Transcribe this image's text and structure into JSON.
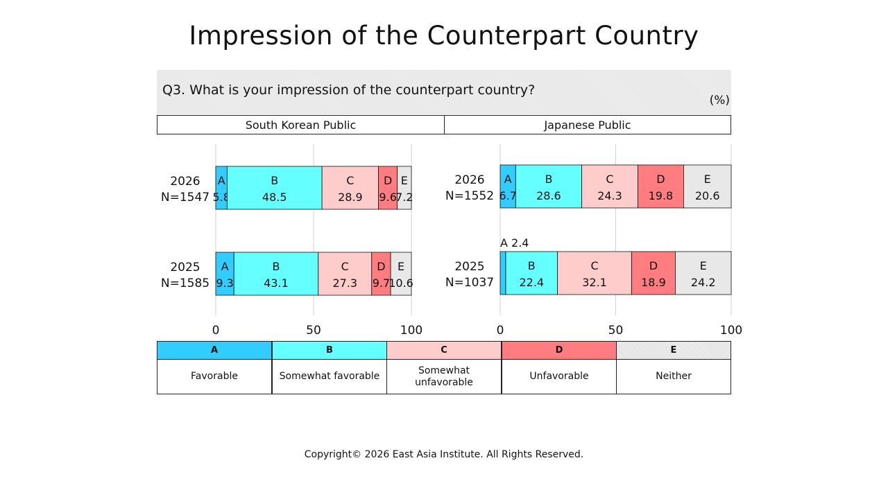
{
  "title": "Impression of the Counterpart Country",
  "question": "Q3. What is your impression of the counterpart country?",
  "unit": "(%)",
  "copyright": "Copyright© 2026 East Asia Institute. All Rights Reserved.",
  "colors": {
    "A": "#33ccff",
    "B": "#66ffff",
    "C": "#ffcccc",
    "D": "#ff7c80",
    "E": "#e8e8e8"
  },
  "legend": [
    {
      "key": "A",
      "label": "Favorable"
    },
    {
      "key": "B",
      "label": "Somewhat favorable"
    },
    {
      "key": "C",
      "label": "Somewhat unfavorable"
    },
    {
      "key": "D",
      "label": "Unfavorable"
    },
    {
      "key": "E",
      "label": "Neither"
    }
  ],
  "chart_data": [
    {
      "type": "bar",
      "orientation": "horizontal",
      "stacked": true,
      "title": "South Korean Public",
      "categories": [
        {
          "year": "2026",
          "n": "N=1547"
        },
        {
          "year": "2025",
          "n": "N=1585"
        }
      ],
      "series": [
        {
          "name": "A",
          "values": [
            5.8,
            9.3
          ]
        },
        {
          "name": "B",
          "values": [
            48.5,
            43.1
          ]
        },
        {
          "name": "C",
          "values": [
            28.9,
            27.3
          ]
        },
        {
          "name": "D",
          "values": [
            9.6,
            9.7
          ]
        },
        {
          "name": "E",
          "values": [
            7.2,
            10.6
          ]
        }
      ],
      "xlim": [
        0,
        100
      ],
      "xticks": [
        0,
        50,
        100
      ],
      "grid": true
    },
    {
      "type": "bar",
      "orientation": "horizontal",
      "stacked": true,
      "title": "Japanese Public",
      "categories": [
        {
          "year": "2026",
          "n": "N=1552"
        },
        {
          "year": "2025",
          "n": "N=1037"
        }
      ],
      "series": [
        {
          "name": "A",
          "values": [
            6.7,
            2.4
          ]
        },
        {
          "name": "B",
          "values": [
            28.6,
            22.4
          ]
        },
        {
          "name": "C",
          "values": [
            24.3,
            32.1
          ]
        },
        {
          "name": "D",
          "values": [
            19.8,
            18.9
          ]
        },
        {
          "name": "E",
          "values": [
            20.6,
            24.2
          ]
        }
      ],
      "xlim": [
        0,
        100
      ],
      "xticks": [
        0,
        50,
        100
      ],
      "grid": true,
      "annotations": [
        "A 2.4"
      ]
    }
  ]
}
